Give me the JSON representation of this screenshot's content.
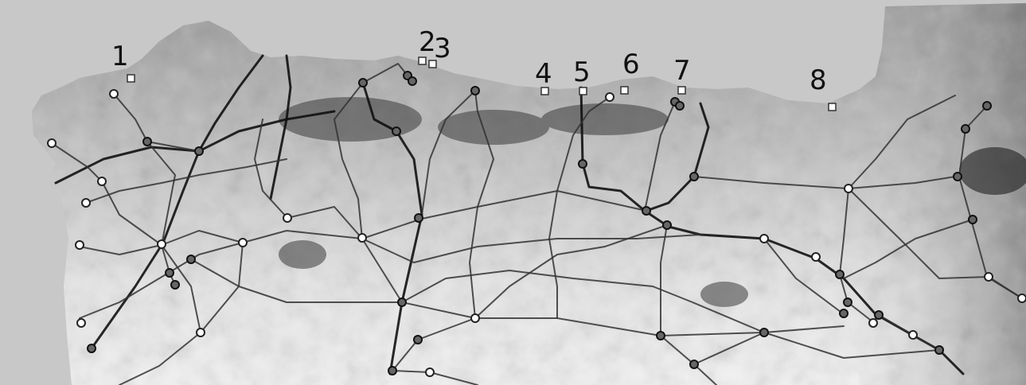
{
  "map": {
    "type": "grayscale relief map",
    "region_labels": [],
    "site_labels": [
      "1",
      "2",
      "3",
      "4",
      "5",
      "6",
      "7",
      "8"
    ],
    "colors": {
      "sea": "#c8c8c8",
      "land_low": "#bdbdbd",
      "land_high": "#f4f4f4",
      "routes": "#222222",
      "markers": "#ffffff"
    }
  }
}
